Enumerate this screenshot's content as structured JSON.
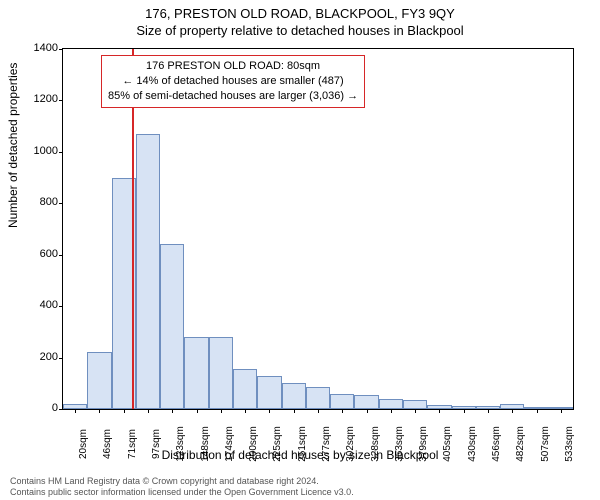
{
  "title": "176, PRESTON OLD ROAD, BLACKPOOL, FY3 9QY",
  "subtitle": "Size of property relative to detached houses in Blackpool",
  "ylabel": "Number of detached properties",
  "xlabel": "Distribution of detached houses by size in Blackpool",
  "chart": {
    "type": "histogram",
    "bar_fill": "#d7e3f4",
    "bar_border": "#6f8fbf",
    "marker_color": "#d62728",
    "background": "#ffffff",
    "axis_color": "#000000",
    "ylim": [
      0,
      1400
    ],
    "ytick_step": 200,
    "xticks": [
      "20sqm",
      "46sqm",
      "71sqm",
      "97sqm",
      "123sqm",
      "148sqm",
      "174sqm",
      "200sqm",
      "225sqm",
      "251sqm",
      "277sqm",
      "302sqm",
      "328sqm",
      "353sqm",
      "379sqm",
      "405sqm",
      "430sqm",
      "456sqm",
      "482sqm",
      "507sqm",
      "533sqm"
    ],
    "bars": [
      20,
      220,
      900,
      1070,
      640,
      280,
      280,
      155,
      130,
      100,
      85,
      60,
      55,
      40,
      35,
      15,
      10,
      10,
      20,
      5,
      5
    ],
    "marker_x_index": 2.35,
    "info_box": {
      "line1": "176 PRESTON OLD ROAD: 80sqm",
      "line2": "← 14% of detached houses are smaller (487)",
      "line3": "85% of semi-detached houses are larger (3,036) →"
    }
  },
  "footer": {
    "line1": "Contains HM Land Registry data © Crown copyright and database right 2024.",
    "line2": "Contains public sector information licensed under the Open Government Licence v3.0."
  }
}
